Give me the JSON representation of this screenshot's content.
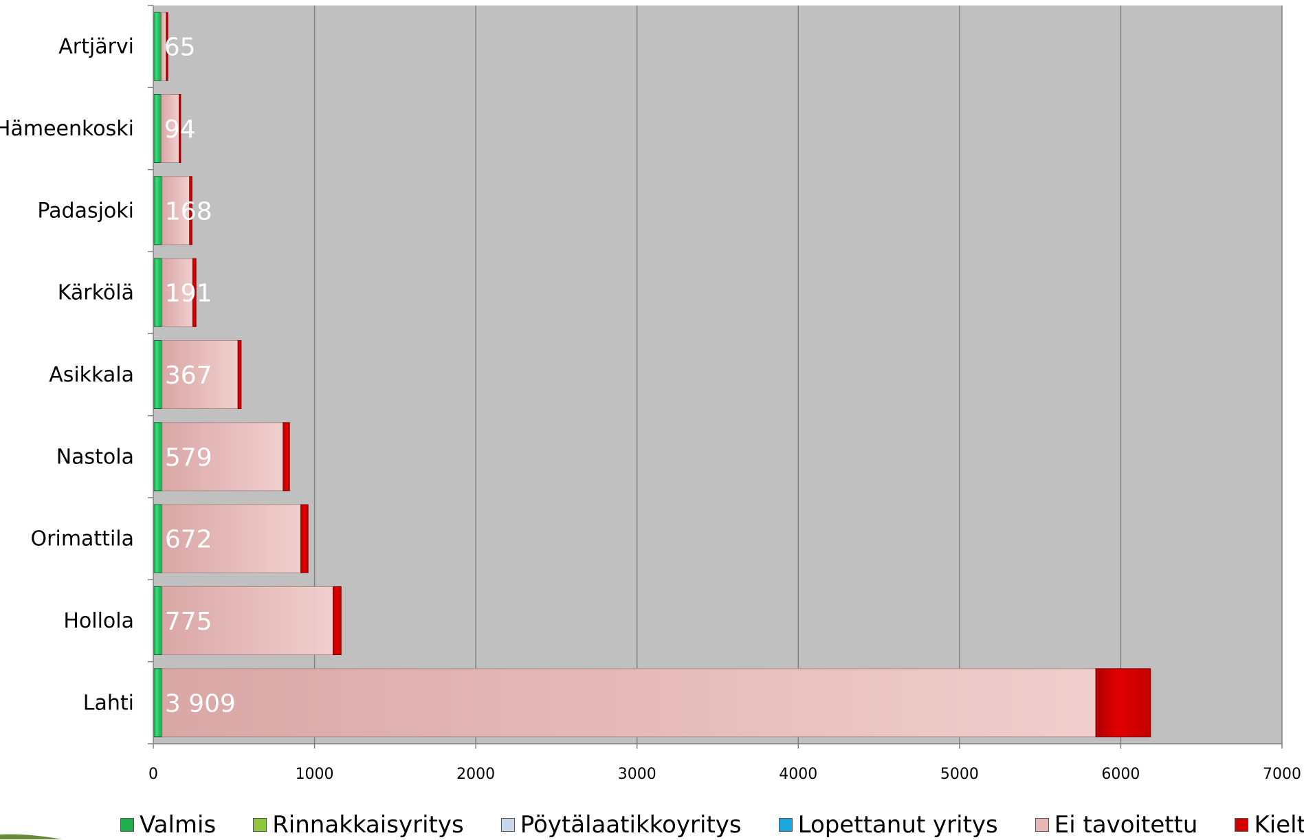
{
  "chart_data": {
    "type": "bar",
    "orientation": "horizontal",
    "stacked": true,
    "categories": [
      "Artjärvi",
      "Hämeenkoski",
      "Padasjoki",
      "Kärkölä",
      "Asikkala",
      "Nastola",
      "Orimattila",
      "Hollola",
      "Lahti"
    ],
    "data_labels": [
      "65",
      "94",
      "168",
      "191",
      "367",
      "579",
      "672",
      "775",
      "3 909"
    ],
    "series": [
      {
        "name": "Valmis",
        "color": "#1fae4e",
        "values": [
          50,
          50,
          55,
          55,
          55,
          55,
          55,
          55,
          55
        ]
      },
      {
        "name": "Rinnakkaisyritys",
        "color": "#8dc63f",
        "values": [
          0,
          0,
          0,
          0,
          0,
          0,
          0,
          0,
          0
        ]
      },
      {
        "name": "Pöytälaatikkoyritys",
        "color": "#c8d8ea",
        "values": [
          0,
          0,
          0,
          0,
          0,
          0,
          0,
          0,
          0
        ]
      },
      {
        "name": "Lopettanut yritys",
        "color": "#1aa7e0",
        "values": [
          0,
          0,
          0,
          0,
          0,
          0,
          0,
          0,
          0
        ]
      },
      {
        "name": "Ei tavoitettu",
        "color": "#e6b8b7",
        "values": [
          30,
          110,
          170,
          190,
          470,
          750,
          860,
          1060,
          5790
        ]
      },
      {
        "name": "Kieltäytyi",
        "color": "#d40000",
        "values": [
          10,
          10,
          15,
          20,
          20,
          40,
          45,
          50,
          340
        ]
      }
    ],
    "xlim": [
      0,
      7000
    ],
    "xticks": [
      0,
      1000,
      2000,
      3000,
      4000,
      5000,
      6000,
      7000
    ],
    "tick_labels": [
      "0",
      "1000",
      "2000",
      "3000",
      "4000",
      "5000",
      "6000",
      "7000"
    ],
    "grid": true,
    "legend_position": "bottom",
    "plot_background": "#c0c0c0"
  }
}
